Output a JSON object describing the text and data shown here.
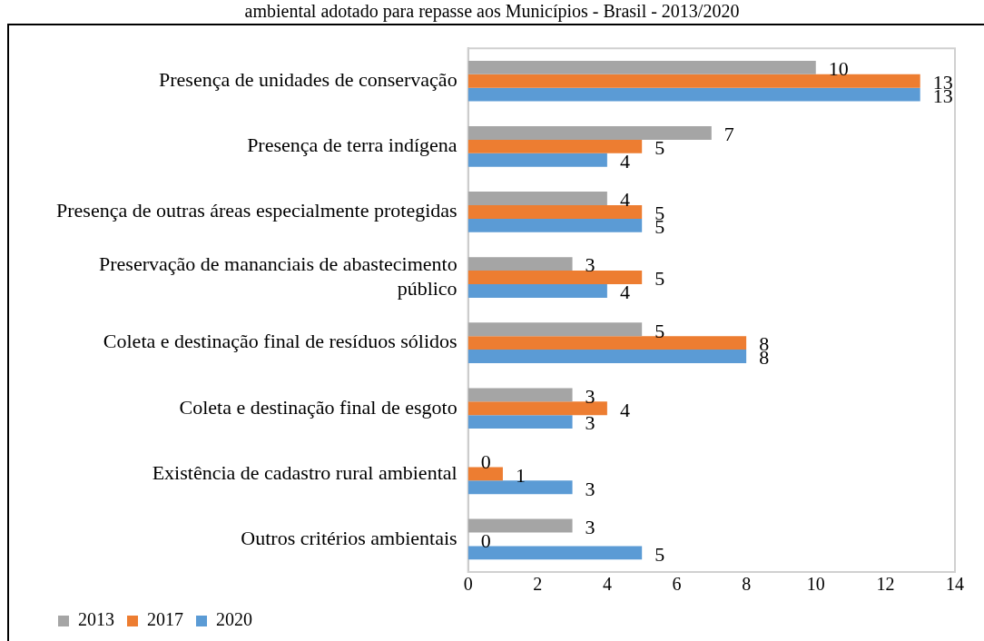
{
  "chart_data": {
    "type": "bar",
    "orientation": "horizontal",
    "title": "ambiental adotado para repasse aos Municípios - Brasil - 2013/2020",
    "categories": [
      "Presença de unidades de conservação",
      "Presença de terra indígena",
      "Presença de outras áreas especialmente protegidas",
      "Preservação de mananciais de abastecimento público",
      "Coleta e destinação final de resíduos sólidos",
      "Coleta e destinação final de esgoto",
      "Existência de cadastro rural ambiental",
      "Outros critérios ambientais"
    ],
    "series": [
      {
        "name": "2013",
        "color": "#a5a5a5",
        "values": [
          10,
          7,
          4,
          3,
          5,
          3,
          0,
          3
        ]
      },
      {
        "name": "2017",
        "color": "#ed7d31",
        "values": [
          13,
          5,
          5,
          5,
          8,
          4,
          1,
          0
        ]
      },
      {
        "name": "2020",
        "color": "#5b9bd5",
        "values": [
          13,
          4,
          5,
          4,
          8,
          3,
          3,
          5
        ]
      }
    ],
    "xlim": [
      0,
      14
    ],
    "xticks": [
      0,
      2,
      4,
      6,
      8,
      10,
      12,
      14
    ],
    "data_labels": true,
    "legend": "bottom",
    "grid": false
  }
}
